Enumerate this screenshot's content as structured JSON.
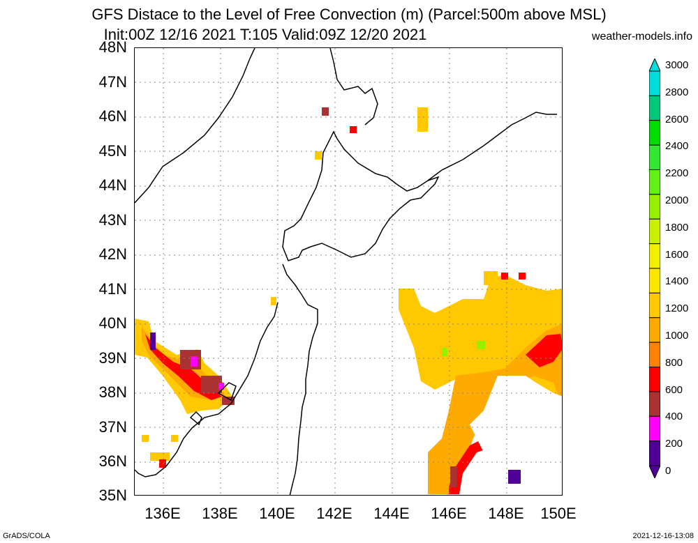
{
  "header": {
    "title": "GFS Distace to the Level of Free Convection (m) (Parcel:500m above MSL)",
    "subtitle": "Init:00Z 12/16 2021 T:105 Valid:09Z 12/20 2021",
    "site": "weather-models.info"
  },
  "map": {
    "lat_labels": [
      "48N",
      "47N",
      "46N",
      "45N",
      "44N",
      "43N",
      "42N",
      "41N",
      "40N",
      "39N",
      "38N",
      "37N",
      "36N",
      "35N"
    ],
    "lon_labels": [
      "136E",
      "138E",
      "140E",
      "142E",
      "144E",
      "146E",
      "148E",
      "150E"
    ],
    "lat_range": [
      35,
      48
    ],
    "lon_range": [
      135,
      150
    ],
    "grid": true
  },
  "colorbar": {
    "labels": [
      "3000",
      "2800",
      "2600",
      "2400",
      "2200",
      "2000",
      "1800",
      "1600",
      "1400",
      "1200",
      "1000",
      "800",
      "600",
      "400",
      "200",
      "0"
    ],
    "colors": [
      "#00dddd",
      "#00c878",
      "#00dc00",
      "#32e632",
      "#64f014",
      "#96f000",
      "#c8f000",
      "#f0f000",
      "#ffe600",
      "#ffc800",
      "#ffaa00",
      "#ff8200",
      "#ff0000",
      "#aa3232",
      "#ff00ff",
      "#500096"
    ]
  },
  "footer": {
    "left": "GrADS/COLA",
    "right": "2021-12-16-13:08"
  }
}
